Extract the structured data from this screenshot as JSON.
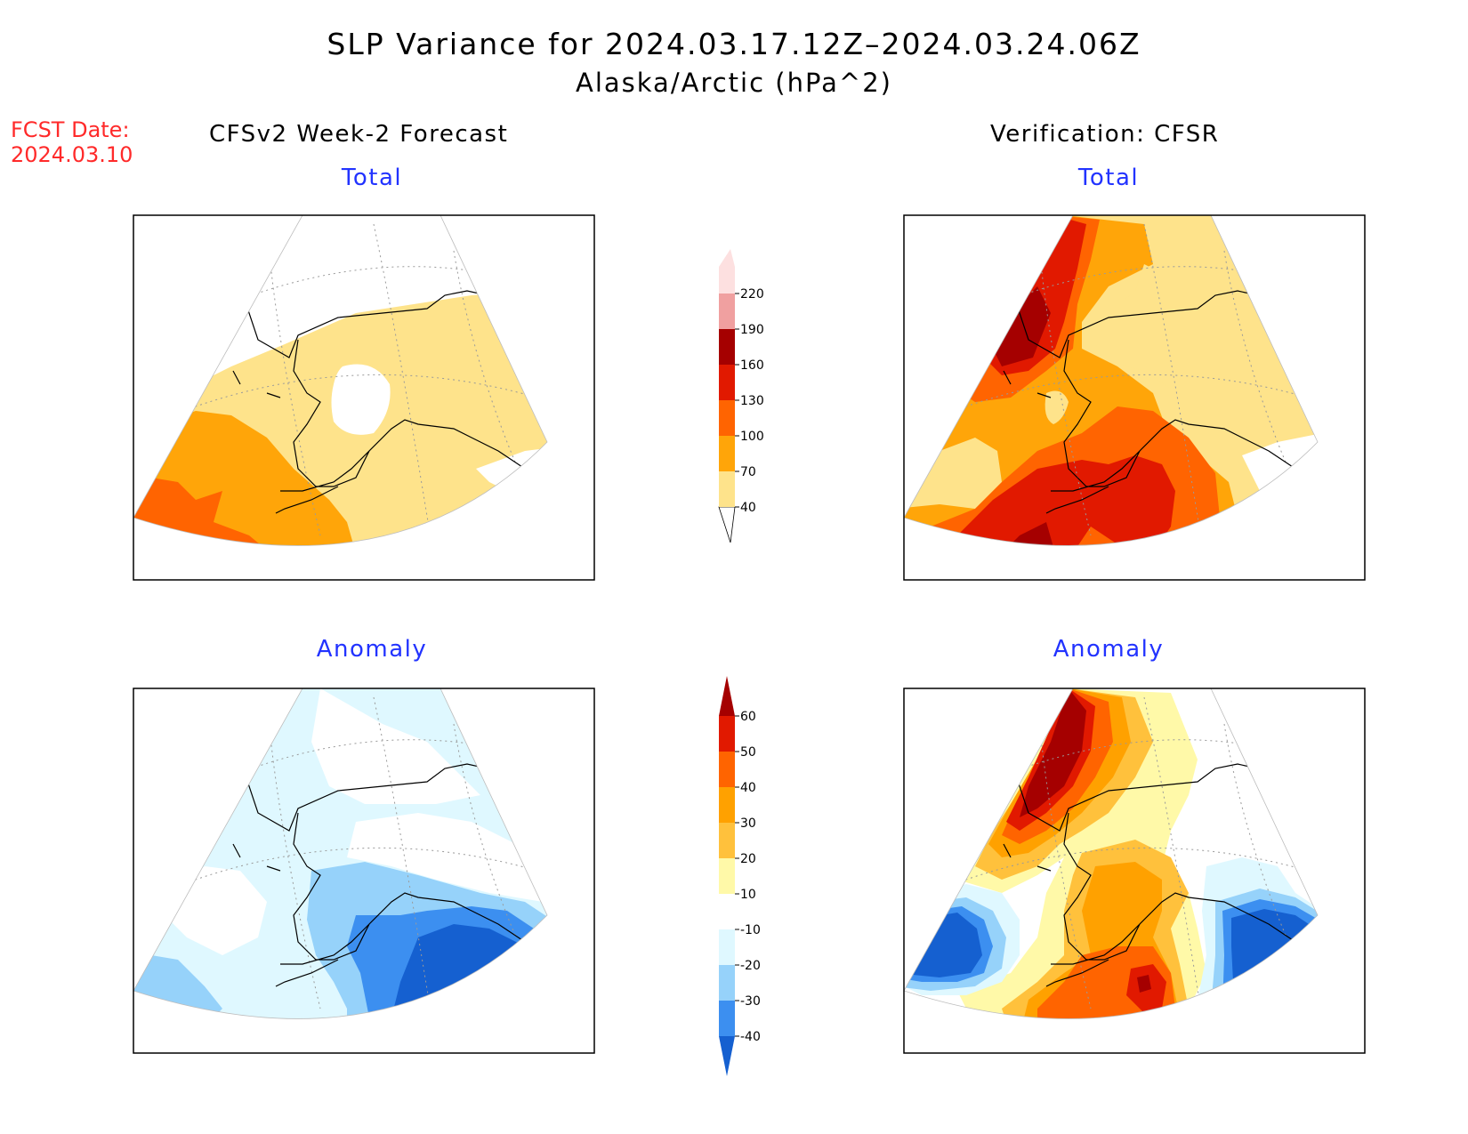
{
  "title": {
    "line1": "SLP Variance for 2024.03.17.12Z–2024.03.24.06Z",
    "line2": "Alaska/Arctic (hPa^2)"
  },
  "fcst_date": {
    "label": "FCST Date:",
    "value": "2024.03.10"
  },
  "columns": {
    "left_header": "CFSv2 Week-2 Forecast",
    "right_header": "Verification: CFSR"
  },
  "panels": {
    "forecast_total_title": "Total",
    "verif_total_title": "Total",
    "forecast_anom_title": "Anomaly",
    "verif_anom_title": "Anomaly"
  },
  "colorbars": {
    "total": {
      "labels": [
        "40",
        "70",
        "100",
        "130",
        "160",
        "190",
        "220"
      ],
      "colors": [
        "#fee38b",
        "#ffa509",
        "#ff6401",
        "#e11900",
        "#a50000",
        "#f0a0a0",
        "#fde0e0"
      ]
    },
    "anomaly": {
      "labels": [
        "-40",
        "-30",
        "-20",
        "-10",
        "10",
        "20",
        "30",
        "40",
        "50",
        "60"
      ],
      "colors": [
        "#1560d0",
        "#3c8ff0",
        "#96d2fa",
        "#dff8ff",
        "#ffffff",
        "#fff9a8",
        "#ffc13c",
        "#ffa100",
        "#ff6400",
        "#e11900",
        "#a50000"
      ]
    }
  },
  "palette": {
    "t_y": "#fee38b",
    "t_o": "#ffa509",
    "t_do": "#ff6401",
    "t_r": "#e11900",
    "t_dr": "#a50000",
    "a_pale": "#dff8ff",
    "a_lb": "#96d2fa",
    "a_b": "#3c8ff0",
    "a_db": "#1560d0",
    "a_y": "#fff9a8",
    "a_ly": "#ffc13c",
    "a_o": "#ffa100",
    "a_do": "#ff6400",
    "a_r": "#e11900",
    "a_dr": "#a50000",
    "coast": "#000000",
    "grid": "#9a9a9a"
  }
}
